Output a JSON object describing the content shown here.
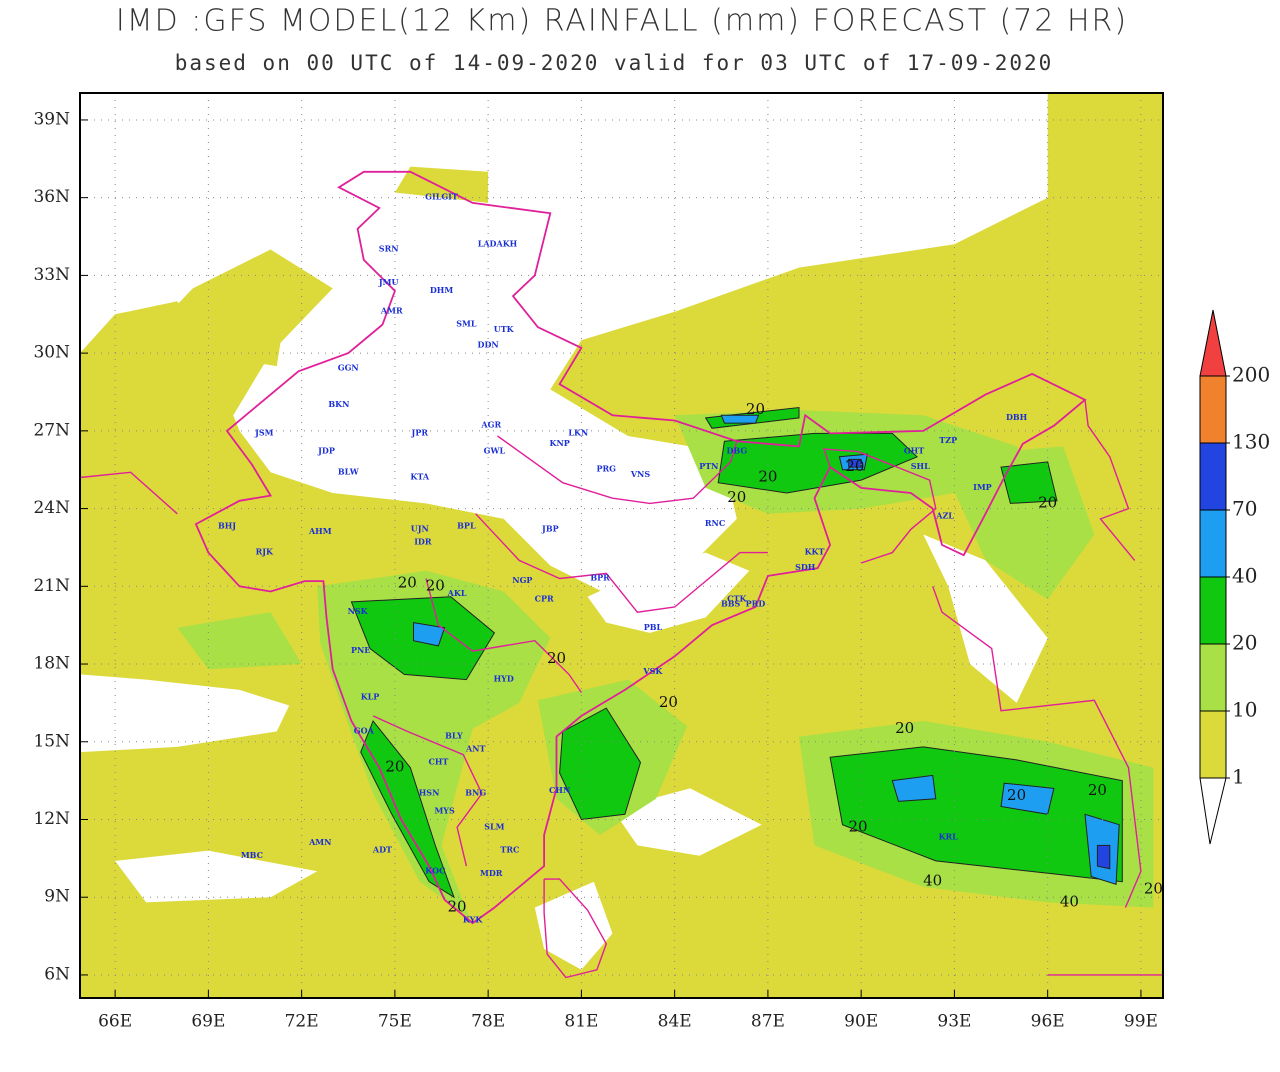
{
  "title": "IMD :GFS MODEL(12 Km) RAINFALL (mm) FORECAST (72 HR)",
  "subtitle": "based on 00 UTC of 14-09-2020 valid for 03 UTC of 17-09-2020",
  "map": {
    "xlim": [
      64.87,
      99.71
    ],
    "ylim": [
      5.11,
      40.04
    ],
    "xticks": [
      {
        "value": 66,
        "label": "66E"
      },
      {
        "value": 69,
        "label": "69E"
      },
      {
        "value": 72,
        "label": "72E"
      },
      {
        "value": 75,
        "label": "75E"
      },
      {
        "value": 78,
        "label": "78E"
      },
      {
        "value": 81,
        "label": "81E"
      },
      {
        "value": 84,
        "label": "84E"
      },
      {
        "value": 87,
        "label": "87E"
      },
      {
        "value": 90,
        "label": "90E"
      },
      {
        "value": 93,
        "label": "93E"
      },
      {
        "value": 96,
        "label": "96E"
      },
      {
        "value": 99,
        "label": "99E"
      }
    ],
    "yticks": [
      {
        "value": 6,
        "label": "6N"
      },
      {
        "value": 9,
        "label": "9N"
      },
      {
        "value": 12,
        "label": "12N"
      },
      {
        "value": 15,
        "label": "15N"
      },
      {
        "value": 18,
        "label": "18N"
      },
      {
        "value": 21,
        "label": "21N"
      },
      {
        "value": 24,
        "label": "24N"
      },
      {
        "value": 27,
        "label": "27N"
      },
      {
        "value": 30,
        "label": "30N"
      },
      {
        "value": 33,
        "label": "33N"
      },
      {
        "value": 36,
        "label": "36N"
      },
      {
        "value": 39,
        "label": "39N"
      }
    ],
    "grid": true
  },
  "legend": {
    "levels": [
      1,
      10,
      20,
      40,
      70,
      130,
      200
    ],
    "colors": [
      "#dcd93a",
      "#a8e046",
      "#10c810",
      "#1e9ef0",
      "#2244e0",
      "#f0822e",
      "#f04040"
    ]
  },
  "stations": [
    "GILGIT",
    "SRN",
    "LADAKH",
    "JMU",
    "DHM",
    "AMR",
    "SML",
    "UTK",
    "DDN",
    "GGN",
    "JPR",
    "JSM",
    "BKN",
    "JDP",
    "BLW",
    "KTA",
    "GWL",
    "AGR",
    "LKN",
    "KNP",
    "PRG",
    "VNS",
    "PTN",
    "DBG",
    "BPL",
    "IDR",
    "UJN",
    "AHM",
    "BHJ",
    "RJK",
    "JBP",
    "RNC",
    "NGP",
    "AKL",
    "CPR",
    "NSK",
    "PNE",
    "KLP",
    "BPR",
    "VSK",
    "HYD",
    "GOA",
    "BLY",
    "ANT",
    "CHT",
    "HSN",
    "BNG",
    "MYS",
    "SLM",
    "CHN",
    "KOC",
    "MDR",
    "TRC",
    "KYK",
    "IMP",
    "AZL",
    "GHT",
    "SHL",
    "TZP",
    "DBH",
    "KKT",
    "SDH",
    "CTK",
    "PRD",
    "BBS",
    "MBC",
    "AMN",
    "ADT",
    "PBL",
    "KRL"
  ],
  "contour_labels": [
    20,
    20,
    20,
    20,
    20,
    20,
    20,
    20,
    20,
    20,
    20,
    20,
    20,
    20,
    20,
    40,
    40,
    20
  ]
}
